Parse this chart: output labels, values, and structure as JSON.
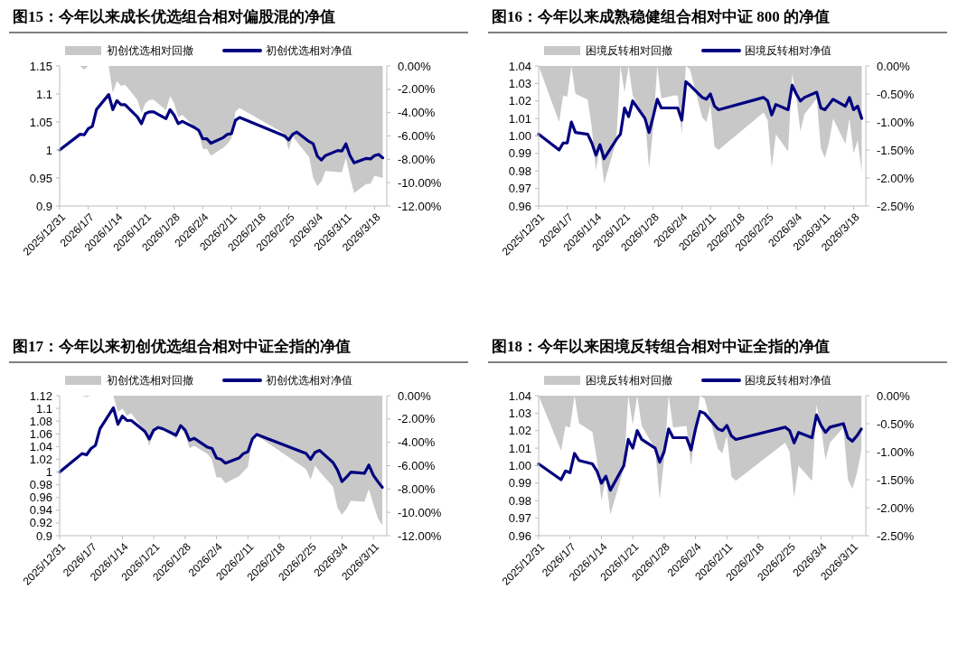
{
  "chart_data": [
    {
      "type": "line",
      "title": "图15：今年以来成长优选组合相对偏股混的净值",
      "legend": "top",
      "x": [
        "2025-12-31",
        "2026-01-05",
        "2026-01-06",
        "2026-01-07",
        "2026-01-08",
        "2026-01-09",
        "2026-01-12",
        "2026-01-13",
        "2026-01-14",
        "2026-01-15",
        "2026-01-16",
        "2026-01-19",
        "2026-01-20",
        "2026-01-21",
        "2026-01-22",
        "2026-01-23",
        "2026-01-26",
        "2026-01-27",
        "2026-01-28",
        "2026-01-29",
        "2026-01-30",
        "2026-02-02",
        "2026-02-03",
        "2026-02-04",
        "2026-02-05",
        "2026-02-06",
        "2026-02-09",
        "2026-02-10",
        "2026-02-11",
        "2026-02-12",
        "2026-02-13",
        "2026-02-24",
        "2026-02-25",
        "2026-02-26",
        "2026-02-27",
        "2026-03-02",
        "2026-03-03",
        "2026-03-04",
        "2026-03-05",
        "2026-03-06",
        "2026-03-09",
        "2026-03-10",
        "2026-03-11",
        "2026-03-12",
        "2026-03-13",
        "2026-03-16",
        "2026-03-17",
        "2026-03-18",
        "2026-03-19",
        "2026-03-20"
      ],
      "xlim": [
        "2025-12-31",
        "2026-03-21"
      ],
      "xticks": [
        {
          "value": "2025-12-31",
          "label": "2025/12/31"
        },
        {
          "value": "2026-01-07",
          "label": "2026/1/7"
        },
        {
          "value": "2026-01-14",
          "label": "2026/1/14"
        },
        {
          "value": "2026-01-21",
          "label": "2026/1/21"
        },
        {
          "value": "2026-01-28",
          "label": "2026/1/28"
        },
        {
          "value": "2026-02-04",
          "label": "2026/2/4"
        },
        {
          "value": "2026-02-11",
          "label": "2026/2/11"
        },
        {
          "value": "2026-02-18",
          "label": "2026/2/18"
        },
        {
          "value": "2026-02-25",
          "label": "2026/2/25"
        },
        {
          "value": "2026-03-04",
          "label": "2026/3/4"
        },
        {
          "value": "2026-03-11",
          "label": "2026/3/11"
        },
        {
          "value": "2026-03-18",
          "label": "2026/3/18"
        }
      ],
      "ylim": [
        0.9,
        1.15
      ],
      "yticks": [
        0.9,
        0.95,
        1,
        1.05,
        1.1,
        1.15
      ],
      "y2lim": [
        -12,
        0
      ],
      "y2ticks": [
        {
          "value": -12,
          "label": "-12.00%"
        },
        {
          "value": -10,
          "label": "-10.00%"
        },
        {
          "value": -8,
          "label": "-8.00%"
        },
        {
          "value": -6,
          "label": "-6.00%"
        },
        {
          "value": -4,
          "label": "-4.00%"
        },
        {
          "value": -2,
          "label": "-2.00%"
        },
        {
          "value": 0,
          "label": "0.00%"
        }
      ],
      "series": [
        {
          "name": "初创优选相对回撤",
          "type": "area",
          "axis": "y2",
          "color": "#c8c8c8",
          "values": [
            0,
            0,
            -0.3,
            0,
            0,
            0,
            0,
            -2.3,
            -1.3,
            -1.7,
            -1.6,
            -2.9,
            -4.0,
            -3.2,
            -2.9,
            -2.9,
            -3.8,
            -2.6,
            -3.2,
            -4.4,
            -4.2,
            -5.2,
            -5.7,
            -7.1,
            -7.1,
            -7.7,
            -7.0,
            -6.7,
            -6.2,
            -3.9,
            -3.6,
            -5.8,
            -7.2,
            -6.0,
            -6.5,
            -7.8,
            -9.6,
            -10.3,
            -9.9,
            -9.0,
            -9.1,
            -9.1,
            -7.9,
            -9.5,
            -10.9,
            -10.1,
            -10.1,
            -9.4,
            -9.5,
            -9.6
          ]
        },
        {
          "name": "初创优选相对净值",
          "color": "#000080",
          "values": [
            1.0,
            1.028,
            1.027,
            1.038,
            1.042,
            1.072,
            1.099,
            1.072,
            1.088,
            1.081,
            1.081,
            1.059,
            1.047,
            1.065,
            1.068,
            1.068,
            1.056,
            1.072,
            1.062,
            1.047,
            1.051,
            1.04,
            1.035,
            1.02,
            1.02,
            1.012,
            1.022,
            1.028,
            1.029,
            1.053,
            1.058,
            1.025,
            1.018,
            1.028,
            1.032,
            1.015,
            1.011,
            0.989,
            0.982,
            0.99,
            0.999,
            0.998,
            1.011,
            0.99,
            0.977,
            0.985,
            0.984,
            0.99,
            0.992,
            0.986
          ]
        }
      ]
    },
    {
      "type": "line",
      "title": "图16：今年以来成熟稳健组合相对中证 800 的净值",
      "legend": "top",
      "x": [
        "2025-12-31",
        "2026-01-05",
        "2026-01-06",
        "2026-01-07",
        "2026-01-08",
        "2026-01-09",
        "2026-01-12",
        "2026-01-13",
        "2026-01-14",
        "2026-01-15",
        "2026-01-16",
        "2026-01-19",
        "2026-01-20",
        "2026-01-21",
        "2026-01-22",
        "2026-01-23",
        "2026-01-26",
        "2026-01-27",
        "2026-01-28",
        "2026-01-29",
        "2026-01-30",
        "2026-02-02",
        "2026-02-03",
        "2026-02-04",
        "2026-02-05",
        "2026-02-06",
        "2026-02-09",
        "2026-02-10",
        "2026-02-11",
        "2026-02-12",
        "2026-02-13",
        "2026-02-24",
        "2026-02-25",
        "2026-02-26",
        "2026-02-27",
        "2026-03-02",
        "2026-03-03",
        "2026-03-04",
        "2026-03-05",
        "2026-03-06",
        "2026-03-09",
        "2026-03-10",
        "2026-03-11",
        "2026-03-12",
        "2026-03-13",
        "2026-03-16",
        "2026-03-17",
        "2026-03-18",
        "2026-03-19",
        "2026-03-20"
      ],
      "xlim": [
        "2025-12-31",
        "2026-03-21"
      ],
      "xticks": [
        {
          "value": "2025-12-31",
          "label": "2025/12/31"
        },
        {
          "value": "2026-01-07",
          "label": "2026/1/7"
        },
        {
          "value": "2026-01-14",
          "label": "2026/1/14"
        },
        {
          "value": "2026-01-21",
          "label": "2026/1/21"
        },
        {
          "value": "2026-01-28",
          "label": "2026/1/28"
        },
        {
          "value": "2026-02-04",
          "label": "2026/2/4"
        },
        {
          "value": "2026-02-11",
          "label": "2026/2/11"
        },
        {
          "value": "2026-02-18",
          "label": "2026/2/18"
        },
        {
          "value": "2026-02-25",
          "label": "2026/2/25"
        },
        {
          "value": "2026-03-04",
          "label": "2026/3/4"
        },
        {
          "value": "2026-03-11",
          "label": "2026/3/11"
        },
        {
          "value": "2026-03-18",
          "label": "2026/3/18"
        }
      ],
      "ylim": [
        0.96,
        1.04
      ],
      "yticks": [
        0.96,
        0.97,
        0.98,
        0.99,
        {
          "value": 1,
          "label": "1.00"
        },
        1.01,
        1.02,
        1.03,
        1.04
      ],
      "y2lim": [
        -2.5,
        0
      ],
      "y2ticks": [
        {
          "value": -2.5,
          "label": "-2.50%"
        },
        {
          "value": -2,
          "label": "-2.00%"
        },
        {
          "value": -1.5,
          "label": "-1.50%"
        },
        {
          "value": -1,
          "label": "-1.00%"
        },
        {
          "value": -0.5,
          "label": "-0.50%"
        },
        {
          "value": 0,
          "label": "0.00%"
        }
      ],
      "series": [
        {
          "name": "困境反转相对回撤",
          "type": "area",
          "axis": "y2",
          "color": "#c8c8c8",
          "values": [
            0,
            -1.0,
            -0.53,
            -0.55,
            0,
            -0.5,
            -0.6,
            -1.1,
            -1.86,
            -1.44,
            -2.1,
            -1.33,
            0,
            -0.47,
            0,
            -0.53,
            -0.94,
            -1.83,
            -1.11,
            0,
            -0.58,
            -0.53,
            -0.53,
            -1.22,
            0,
            -0.06,
            -0.92,
            -1.0,
            -0.69,
            -1.44,
            -1.5,
            -0.83,
            -0.97,
            -1.81,
            -1.22,
            -1.53,
            -0.14,
            -0.56,
            -1.17,
            -0.86,
            -0.58,
            -1.47,
            -1.64,
            -1.36,
            -0.94,
            -1.39,
            -0.94,
            -1.56,
            -1.33,
            -1.89
          ]
        },
        {
          "name": "困境反转相对净值",
          "color": "#000080",
          "values": [
            1.001,
            0.992,
            0.996,
            0.996,
            1.008,
            1.002,
            1.001,
            0.996,
            0.989,
            0.995,
            0.987,
            0.998,
            1.001,
            1.016,
            1.011,
            1.02,
            1.01,
            1.002,
            1.011,
            1.021,
            1.016,
            1.016,
            1.016,
            1.009,
            1.031,
            1.029,
            1.022,
            1.021,
            1.024,
            1.017,
            1.015,
            1.022,
            1.02,
            1.012,
            1.018,
            1.015,
            1.029,
            1.024,
            1.02,
            1.022,
            1.025,
            1.016,
            1.015,
            1.018,
            1.021,
            1.017,
            1.022,
            1.015,
            1.017,
            1.01
          ]
        }
      ]
    },
    {
      "type": "line",
      "title": "图17：今年以来初创优选组合相对中证全指的净值",
      "legend": "top",
      "x": [
        "2025-12-31",
        "2026-01-05",
        "2026-01-06",
        "2026-01-07",
        "2026-01-08",
        "2026-01-09",
        "2026-01-12",
        "2026-01-13",
        "2026-01-14",
        "2026-01-15",
        "2026-01-16",
        "2026-01-19",
        "2026-01-20",
        "2026-01-21",
        "2026-01-22",
        "2026-01-23",
        "2026-01-26",
        "2026-01-27",
        "2026-01-28",
        "2026-01-29",
        "2026-01-30",
        "2026-02-02",
        "2026-02-03",
        "2026-02-04",
        "2026-02-05",
        "2026-02-06",
        "2026-02-09",
        "2026-02-10",
        "2026-02-11",
        "2026-02-12",
        "2026-02-13",
        "2026-02-24",
        "2026-02-25",
        "2026-02-26",
        "2026-02-27",
        "2026-03-02",
        "2026-03-03",
        "2026-03-04",
        "2026-03-05",
        "2026-03-06",
        "2026-03-09",
        "2026-03-10",
        "2026-03-11",
        "2026-03-12",
        "2026-03-13"
      ],
      "xlim": [
        "2025-12-31",
        "2026-03-14"
      ],
      "xticks": [
        {
          "value": "2025-12-31",
          "label": "2025/12/31"
        },
        {
          "value": "2026-01-07",
          "label": "2026/1/7"
        },
        {
          "value": "2026-01-14",
          "label": "2026/1/14"
        },
        {
          "value": "2026-01-21",
          "label": "2026/1/21"
        },
        {
          "value": "2026-01-28",
          "label": "2026/1/28"
        },
        {
          "value": "2026-02-04",
          "label": "2026/2/4"
        },
        {
          "value": "2026-02-11",
          "label": "2026/2/11"
        },
        {
          "value": "2026-02-18",
          "label": "2026/2/18"
        },
        {
          "value": "2026-02-25",
          "label": "2026/2/25"
        },
        {
          "value": "2026-03-04",
          "label": "2026/3/4"
        },
        {
          "value": "2026-03-11",
          "label": "2026/3/11"
        }
      ],
      "ylim": [
        0.9,
        1.12
      ],
      "yticks": [
        0.9,
        0.92,
        0.94,
        0.96,
        0.98,
        1,
        1.02,
        1.04,
        1.06,
        1.08,
        1.1,
        1.12
      ],
      "y2lim": [
        -12,
        0
      ],
      "y2ticks": [
        {
          "value": -12,
          "label": "-12.00%"
        },
        {
          "value": -10,
          "label": "-10.00%"
        },
        {
          "value": -8,
          "label": "-8.00%"
        },
        {
          "value": -6,
          "label": "-6.00%"
        },
        {
          "value": -4,
          "label": "-4.00%"
        },
        {
          "value": -2,
          "label": "-2.00%"
        },
        {
          "value": 0,
          "label": "0.00%"
        }
      ],
      "series": [
        {
          "name": "初创优选相对回撤",
          "type": "area",
          "axis": "y2",
          "color": "#c8c8c8",
          "values": [
            0,
            0,
            -0.1,
            0,
            0,
            0,
            0,
            -1.4,
            -1.1,
            -1.7,
            -1.5,
            -3.1,
            -4.3,
            -3.1,
            -2.8,
            -2.8,
            -3.7,
            -2.7,
            -3.3,
            -4.5,
            -4.3,
            -5.0,
            -5.5,
            -7.0,
            -7.0,
            -7.5,
            -6.9,
            -6.5,
            -6.1,
            -3.7,
            -3.4,
            -6.3,
            -7.2,
            -6.0,
            -6.5,
            -7.8,
            -9.6,
            -10.2,
            -9.7,
            -9.0,
            -9.1,
            -8.0,
            -9.3,
            -10.5,
            -11.1
          ]
        },
        {
          "name": "初创优选相对净值",
          "color": "#000080",
          "values": [
            1.0,
            1.029,
            1.027,
            1.037,
            1.042,
            1.068,
            1.101,
            1.075,
            1.088,
            1.081,
            1.081,
            1.064,
            1.052,
            1.066,
            1.07,
            1.068,
            1.058,
            1.073,
            1.066,
            1.05,
            1.053,
            1.039,
            1.037,
            1.022,
            1.02,
            1.014,
            1.022,
            1.029,
            1.032,
            1.052,
            1.059,
            1.029,
            1.02,
            1.031,
            1.034,
            1.015,
            1.003,
            0.985,
            0.992,
            1.0,
            0.998,
            1.011,
            0.995,
            0.985,
            0.976
          ]
        }
      ]
    },
    {
      "type": "line",
      "title": "图18：今年以来困境反转组合相对中证全指的净值",
      "legend": "top",
      "x": [
        "2025-12-31",
        "2026-01-05",
        "2026-01-06",
        "2026-01-07",
        "2026-01-08",
        "2026-01-09",
        "2026-01-12",
        "2026-01-13",
        "2026-01-14",
        "2026-01-15",
        "2026-01-16",
        "2026-01-19",
        "2026-01-20",
        "2026-01-21",
        "2026-01-22",
        "2026-01-23",
        "2026-01-26",
        "2026-01-27",
        "2026-01-28",
        "2026-01-29",
        "2026-01-30",
        "2026-02-02",
        "2026-02-03",
        "2026-02-04",
        "2026-02-05",
        "2026-02-06",
        "2026-02-09",
        "2026-02-10",
        "2026-02-11",
        "2026-02-12",
        "2026-02-13",
        "2026-02-24",
        "2026-02-25",
        "2026-02-26",
        "2026-02-27",
        "2026-03-02",
        "2026-03-03",
        "2026-03-04",
        "2026-03-05",
        "2026-03-06",
        "2026-03-09",
        "2026-03-10",
        "2026-03-11",
        "2026-03-12",
        "2026-03-13"
      ],
      "xlim": [
        "2025-12-31",
        "2026-03-14"
      ],
      "xticks": [
        {
          "value": "2025-12-31",
          "label": "2025/12/31"
        },
        {
          "value": "2026-01-07",
          "label": "2026/1/7"
        },
        {
          "value": "2026-01-14",
          "label": "2026/1/14"
        },
        {
          "value": "2026-01-21",
          "label": "2026/1/21"
        },
        {
          "value": "2026-01-28",
          "label": "2026/1/28"
        },
        {
          "value": "2026-02-04",
          "label": "2026/2/4"
        },
        {
          "value": "2026-02-11",
          "label": "2026/2/11"
        },
        {
          "value": "2026-02-18",
          "label": "2026/2/18"
        },
        {
          "value": "2026-02-25",
          "label": "2026/2/25"
        },
        {
          "value": "2026-03-04",
          "label": "2026/3/4"
        },
        {
          "value": "2026-03-11",
          "label": "2026/3/11"
        }
      ],
      "ylim": [
        0.96,
        1.04
      ],
      "yticks": [
        0.96,
        0.97,
        0.98,
        0.99,
        {
          "value": 1,
          "label": "1.00"
        },
        1.01,
        1.02,
        1.03,
        1.04
      ],
      "y2lim": [
        -2.5,
        0
      ],
      "y2ticks": [
        {
          "value": -2.5,
          "label": "-2.50%"
        },
        {
          "value": -2,
          "label": "-2.00%"
        },
        {
          "value": -1.5,
          "label": "-1.50%"
        },
        {
          "value": -1,
          "label": "-1.00%"
        },
        {
          "value": -0.5,
          "label": "-0.50%"
        },
        {
          "value": 0,
          "label": "0.00%"
        }
      ],
      "series": [
        {
          "name": "困境反转相对回撤",
          "type": "area",
          "axis": "y2",
          "color": "#c8c8c8",
          "values": [
            0,
            -0.98,
            -0.54,
            -0.57,
            0,
            -0.49,
            -0.65,
            -1.14,
            -1.88,
            -1.47,
            -2.12,
            -1.3,
            0,
            -0.52,
            0,
            -0.54,
            -0.95,
            -1.85,
            -1.14,
            0,
            -0.57,
            -0.54,
            -1.25,
            -0.6,
            0,
            -0.05,
            -0.95,
            -1.03,
            -0.71,
            -1.44,
            -1.52,
            -0.84,
            -1.0,
            -1.82,
            -1.25,
            -1.52,
            -0.16,
            -0.57,
            -1.14,
            -0.84,
            -0.57,
            -1.49,
            -1.66,
            -1.39,
            -0.98
          ]
        },
        {
          "name": "困境反转相对净值",
          "color": "#000080",
          "values": [
            1.001,
            0.992,
            0.997,
            0.996,
            1.007,
            1.003,
            1.001,
            0.997,
            0.99,
            0.994,
            0.986,
            1.0,
            1.015,
            1.01,
            1.02,
            1.015,
            1.01,
            1.002,
            1.008,
            1.021,
            1.016,
            1.016,
            1.009,
            1.021,
            1.031,
            1.03,
            1.021,
            1.02,
            1.023,
            1.017,
            1.015,
            1.022,
            1.02,
            1.013,
            1.019,
            1.016,
            1.029,
            1.023,
            1.019,
            1.022,
            1.024,
            1.016,
            1.014,
            1.017,
            1.021
          ]
        }
      ]
    }
  ]
}
